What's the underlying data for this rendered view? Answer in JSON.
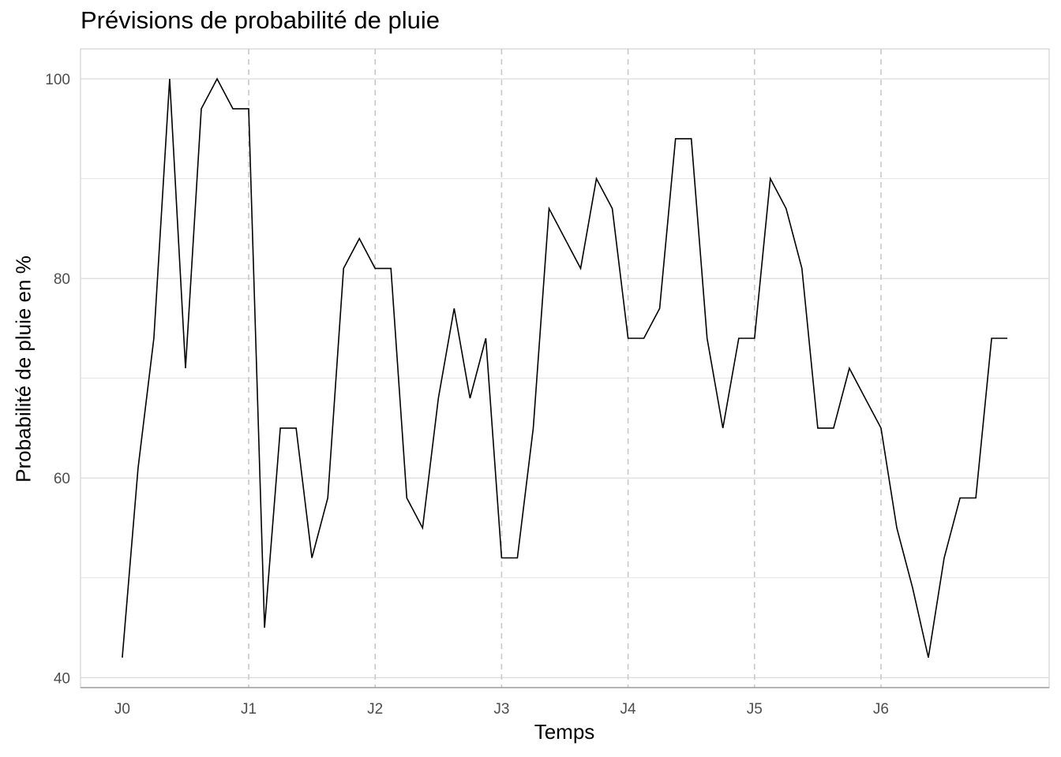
{
  "chart_data": {
    "type": "line",
    "title": "Prévisions de probabilité de pluie",
    "xlabel": "Temps",
    "ylabel": "Probabilité de pluie en %",
    "x_ticks": [
      "J0",
      "J1",
      "J2",
      "J3",
      "J4",
      "J5",
      "J6"
    ],
    "y_ticks": [
      40,
      60,
      80,
      100
    ],
    "ylim": [
      39,
      103
    ],
    "xlim": [
      -0.33,
      7.33
    ],
    "grid": true,
    "day_separators": "dashed vertical lines at J1–J6",
    "line_color": "#000000",
    "series": [
      {
        "x": [
          0,
          0.125,
          0.25,
          0.375,
          0.5,
          0.625,
          0.75,
          0.875,
          1,
          1.125,
          1.25,
          1.375,
          1.5,
          1.625,
          1.75,
          1.875,
          2,
          2.125,
          2.25,
          2.375,
          2.5,
          2.625,
          2.75,
          2.875,
          3,
          3.125,
          3.25,
          3.375,
          3.5,
          3.625,
          3.75,
          3.875,
          4,
          4.125,
          4.25,
          4.375,
          4.5,
          4.625,
          4.75,
          4.875,
          5,
          5.125,
          5.25,
          5.375,
          5.5,
          5.625,
          5.75,
          5.875,
          6,
          6.125,
          6.25,
          6.375,
          6.5,
          6.625,
          6.75,
          6.875,
          7
        ],
        "y": [
          42,
          61,
          74,
          100,
          71,
          97,
          100,
          97,
          97,
          45,
          65,
          65,
          52,
          58,
          81,
          84,
          81,
          81,
          58,
          55,
          68,
          77,
          68,
          74,
          52,
          52,
          65,
          87,
          84,
          81,
          90,
          87,
          74,
          74,
          77,
          94,
          94,
          74,
          65,
          74,
          74,
          90,
          87,
          81,
          65,
          65,
          71,
          68,
          65,
          55,
          49,
          42,
          52,
          58,
          58,
          74,
          74
        ]
      }
    ]
  }
}
